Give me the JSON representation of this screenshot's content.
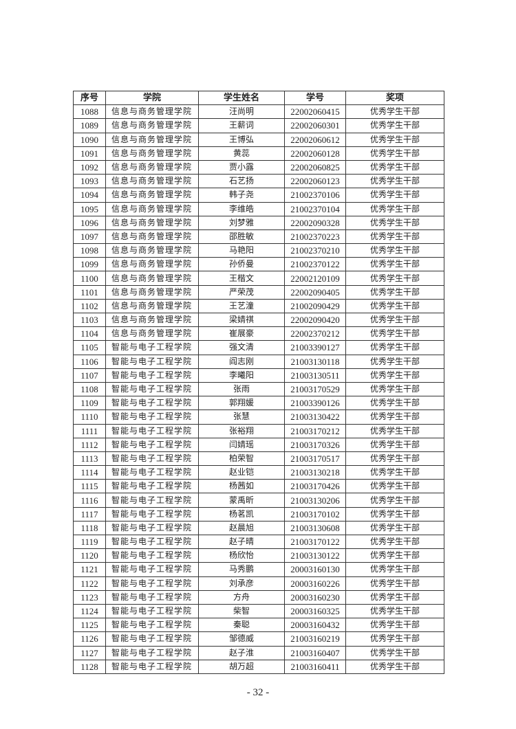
{
  "table": {
    "headers": [
      "序号",
      "学院",
      "学生姓名",
      "学号",
      "奖项"
    ],
    "rows": [
      [
        "1088",
        "信息与商务管理学院",
        "汪尚明",
        "22002060415",
        "优秀学生干部"
      ],
      [
        "1089",
        "信息与商务管理学院",
        "王薪词",
        "22002060301",
        "优秀学生干部"
      ],
      [
        "1090",
        "信息与商务管理学院",
        "王博弘",
        "22002060612",
        "优秀学生干部"
      ],
      [
        "1091",
        "信息与商务管理学院",
        "黄蕊",
        "22002060128",
        "优秀学生干部"
      ],
      [
        "1092",
        "信息与商务管理学院",
        "贾小露",
        "22002060825",
        "优秀学生干部"
      ],
      [
        "1093",
        "信息与商务管理学院",
        "石艺扬",
        "22002060123",
        "优秀学生干部"
      ],
      [
        "1094",
        "信息与商务管理学院",
        "韩子尧",
        "21002370106",
        "优秀学生干部"
      ],
      [
        "1095",
        "信息与商务管理学院",
        "李维皓",
        "21002370104",
        "优秀学生干部"
      ],
      [
        "1096",
        "信息与商务管理学院",
        "刘梦雅",
        "22002090328",
        "优秀学生干部"
      ],
      [
        "1097",
        "信息与商务管理学院",
        "邵胜敏",
        "21002370223",
        "优秀学生干部"
      ],
      [
        "1098",
        "信息与商务管理学院",
        "马艳阳",
        "21002370210",
        "优秀学生干部"
      ],
      [
        "1099",
        "信息与商务管理学院",
        "孙侨曼",
        "21002370122",
        "优秀学生干部"
      ],
      [
        "1100",
        "信息与商务管理学院",
        "王楷文",
        "22002120109",
        "优秀学生干部"
      ],
      [
        "1101",
        "信息与商务管理学院",
        "严荣茂",
        "22002090405",
        "优秀学生干部"
      ],
      [
        "1102",
        "信息与商务管理学院",
        "王艺潼",
        "21002090429",
        "优秀学生干部"
      ],
      [
        "1103",
        "信息与商务管理学院",
        "梁婧祺",
        "22002090420",
        "优秀学生干部"
      ],
      [
        "1104",
        "信息与商务管理学院",
        "崔展豪",
        "22002370212",
        "优秀学生干部"
      ],
      [
        "1105",
        "智能与电子工程学院",
        "强文清",
        "21003390127",
        "优秀学生干部"
      ],
      [
        "1106",
        "智能与电子工程学院",
        "阎志刚",
        "21003130118",
        "优秀学生干部"
      ],
      [
        "1107",
        "智能与电子工程学院",
        "李曦阳",
        "21003130511",
        "优秀学生干部"
      ],
      [
        "1108",
        "智能与电子工程学院",
        "张雨",
        "21003170529",
        "优秀学生干部"
      ],
      [
        "1109",
        "智能与电子工程学院",
        "郭翔媛",
        "21003390126",
        "优秀学生干部"
      ],
      [
        "1110",
        "智能与电子工程学院",
        "张慧",
        "21003130422",
        "优秀学生干部"
      ],
      [
        "1111",
        "智能与电子工程学院",
        "张裕翔",
        "21003170212",
        "优秀学生干部"
      ],
      [
        "1112",
        "智能与电子工程学院",
        "闫婧瑶",
        "21003170326",
        "优秀学生干部"
      ],
      [
        "1113",
        "智能与电子工程学院",
        "柏荣智",
        "21003170517",
        "优秀学生干部"
      ],
      [
        "1114",
        "智能与电子工程学院",
        "赵业铠",
        "21003130218",
        "优秀学生干部"
      ],
      [
        "1115",
        "智能与电子工程学院",
        "杨茜如",
        "21003170426",
        "优秀学生干部"
      ],
      [
        "1116",
        "智能与电子工程学院",
        "蒙禹昕",
        "21003130206",
        "优秀学生干部"
      ],
      [
        "1117",
        "智能与电子工程学院",
        "杨茗凯",
        "21003170102",
        "优秀学生干部"
      ],
      [
        "1118",
        "智能与电子工程学院",
        "赵晨旭",
        "21003130608",
        "优秀学生干部"
      ],
      [
        "1119",
        "智能与电子工程学院",
        "赵子晴",
        "21003170122",
        "优秀学生干部"
      ],
      [
        "1120",
        "智能与电子工程学院",
        "杨欣怡",
        "21003130122",
        "优秀学生干部"
      ],
      [
        "1121",
        "智能与电子工程学院",
        "马秀鹏",
        "20003160130",
        "优秀学生干部"
      ],
      [
        "1122",
        "智能与电子工程学院",
        "刘承彦",
        "20003160226",
        "优秀学生干部"
      ],
      [
        "1123",
        "智能与电子工程学院",
        "方舟",
        "20003160230",
        "优秀学生干部"
      ],
      [
        "1124",
        "智能与电子工程学院",
        "柴智",
        "20003160325",
        "优秀学生干部"
      ],
      [
        "1125",
        "智能与电子工程学院",
        "秦聪",
        "20003160432",
        "优秀学生干部"
      ],
      [
        "1126",
        "智能与电子工程学院",
        "邹德威",
        "21003160219",
        "优秀学生干部"
      ],
      [
        "1127",
        "智能与电子工程学院",
        "赵子淮",
        "21003160407",
        "优秀学生干部"
      ],
      [
        "1128",
        "智能与电子工程学院",
        "胡万超",
        "21003160411",
        "优秀学生干部"
      ]
    ]
  },
  "footer": {
    "page_number": "- 32 -"
  }
}
